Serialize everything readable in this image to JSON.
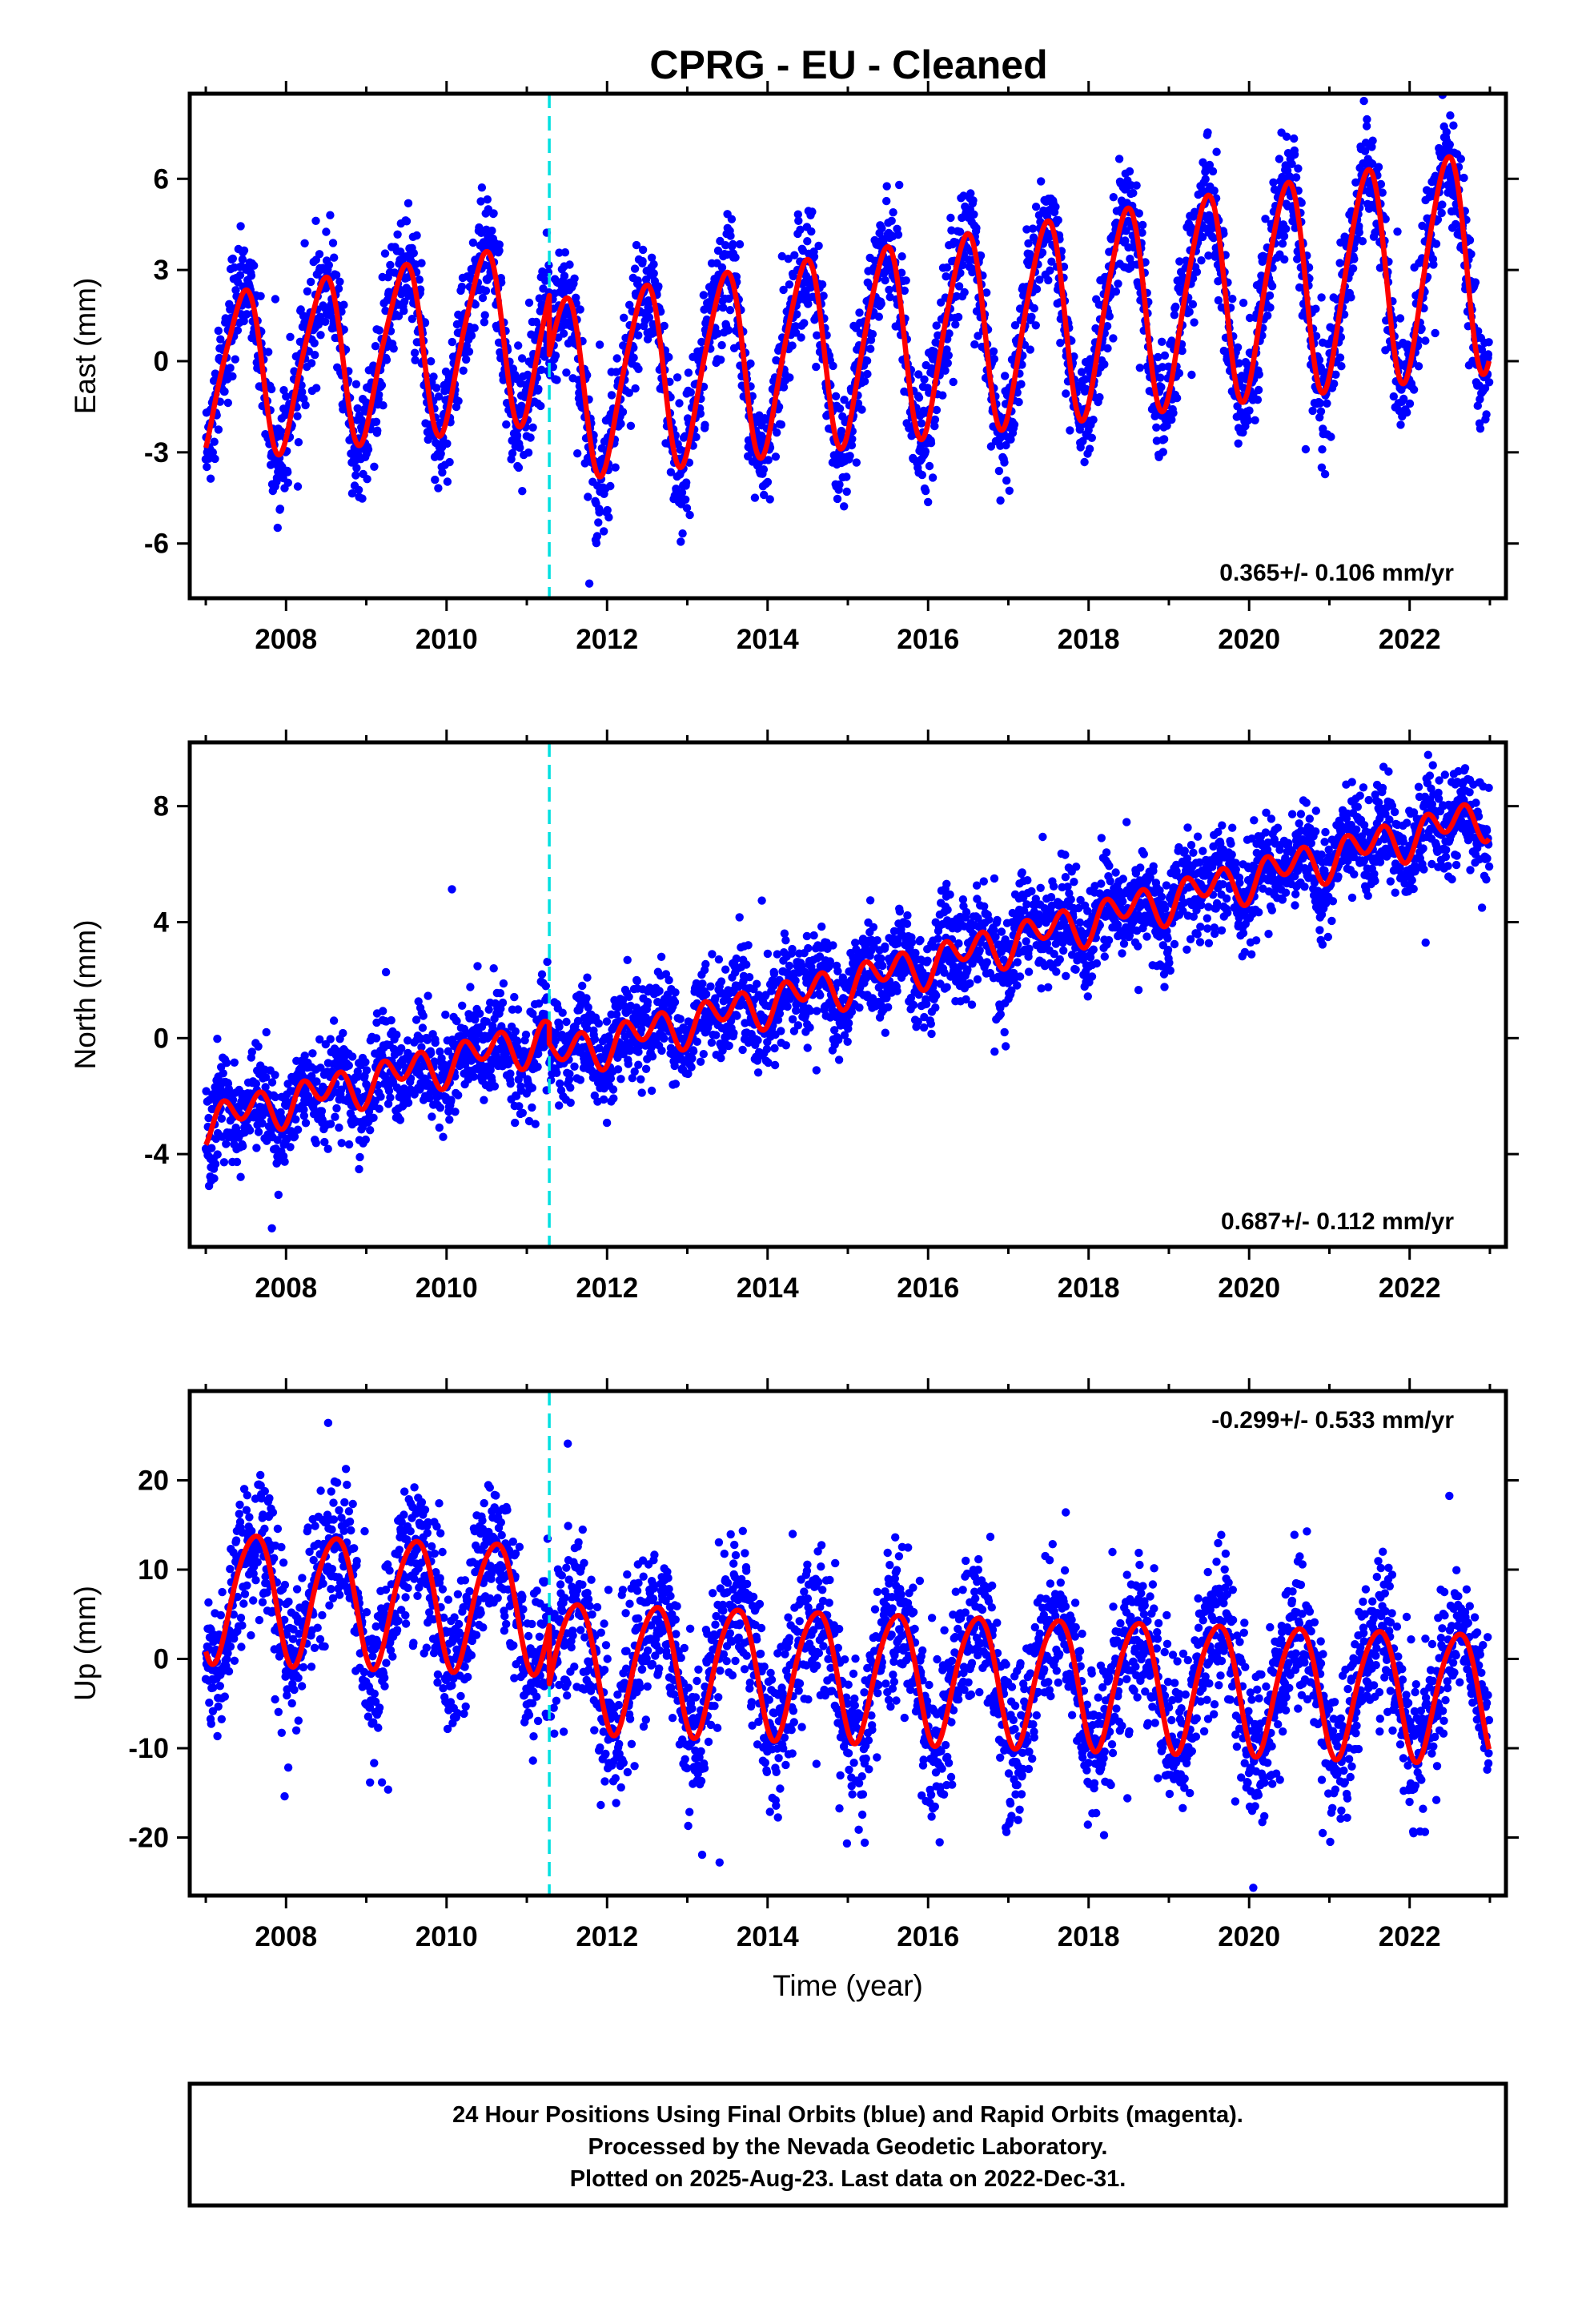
{
  "title": "CPRG  - EU - Cleaned",
  "colors": {
    "final_orbits": "#0000ff",
    "model": "#ff0000",
    "equipment_change": "#00e0e0",
    "frame": "#000000"
  },
  "chart_data": [
    {
      "type": "scatter",
      "component": "east",
      "ylabel": "East (mm)",
      "xlabel": "",
      "xlim": [
        2006.8,
        2023.2
      ],
      "ylim": [
        -7.8,
        8.8
      ],
      "xticks": [
        2008,
        2010,
        2012,
        2014,
        2016,
        2018,
        2020,
        2022
      ],
      "yticks": [
        -6,
        -3,
        0,
        3,
        6
      ],
      "rate_text": "0.365+/- 0.106 mm/yr",
      "rate_position": "bottom-right",
      "break_epoch": 2011.28,
      "x_range": [
        2007.0,
        2022.99
      ],
      "model": {
        "rate_mm_per_yr": 0.365,
        "epoch_before": -2.1,
        "epoch_after": -3.45,
        "annual_amplitude": 3.1,
        "annual_peak": 0.45,
        "semiannual_amplitude": 0.45,
        "semiannual_peak": 0.1,
        "annual_growth_per_yr": 0.06
      },
      "scatter_sigma": 0.95,
      "series": [
        {
          "name": "Final Orbits",
          "color": "#0000ff"
        }
      ]
    },
    {
      "type": "scatter",
      "component": "north",
      "ylabel": "North (mm)",
      "xlabel": "",
      "xlim": [
        2006.8,
        2023.2
      ],
      "ylim": [
        -7.2,
        10.2
      ],
      "xticks": [
        2008,
        2010,
        2012,
        2014,
        2016,
        2018,
        2020,
        2022
      ],
      "yticks": [
        -4,
        0,
        4,
        8
      ],
      "rate_text": "0.687+/- 0.112 mm/yr",
      "rate_position": "bottom-right",
      "break_epoch": 2011.28,
      "x_range": [
        2007.0,
        2022.99
      ],
      "model": {
        "rate_mm_per_yr": 0.687,
        "epoch_before": -4.7,
        "epoch_after": -9.4,
        "annual_amplitude": 0.35,
        "annual_peak": 0.45,
        "semiannual_amplitude": 0.55,
        "semiannual_peak": 0.2,
        "annual_growth_per_yr": 0,
        "late_acceleration": 0.3
      },
      "scatter_sigma": 0.85,
      "series": [
        {
          "name": "Final Orbits",
          "color": "#0000ff"
        }
      ]
    },
    {
      "type": "scatter",
      "component": "up",
      "ylabel": "Up (mm)",
      "xlabel": "Time (year)",
      "xlim": [
        2006.8,
        2023.2
      ],
      "ylim": [
        -26.5,
        30.0
      ],
      "xticks": [
        2008,
        2010,
        2012,
        2014,
        2016,
        2018,
        2020,
        2022
      ],
      "yticks": [
        -20,
        -10,
        0,
        10,
        20
      ],
      "rate_text": "-0.299+/- 0.533 mm/yr",
      "rate_position": "top-right",
      "break_epoch": 2011.28,
      "x_range": [
        2007.0,
        2022.99
      ],
      "model": {
        "rate_mm_per_yr": -0.299,
        "epoch_before": 7.4,
        "epoch_after": 0.6,
        "annual_amplitude": 7.2,
        "annual_peak": 0.6,
        "semiannual_amplitude": 0.8,
        "semiannual_peak": 0.3,
        "annual_growth_per_yr": 0
      },
      "scatter_sigma": 4.2,
      "series": [
        {
          "name": "Final Orbits",
          "color": "#0000ff"
        }
      ]
    }
  ],
  "footer": {
    "line1": "24 Hour Positions Using Final Orbits (blue) and Rapid Orbits (magenta).",
    "line2": "Processed by the Nevada Geodetic Laboratory.",
    "line3": "Plotted on 2025-Aug-23. Last data on 2022-Dec-31."
  }
}
